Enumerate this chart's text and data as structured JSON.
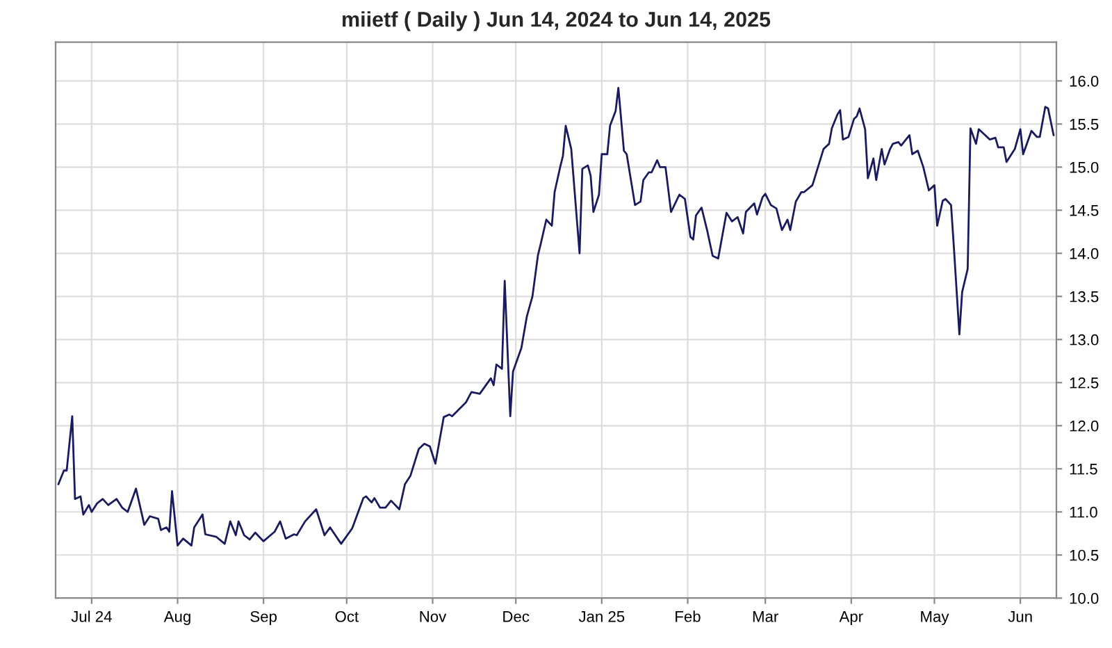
{
  "chart_data": {
    "type": "line",
    "title": "miietf ( Daily ) Jun 14, 2024 to Jun 14, 2025",
    "x": [
      "2024-06-19",
      "2024-06-21",
      "2024-06-22",
      "2024-06-24",
      "2024-06-25",
      "2024-06-27",
      "2024-06-28",
      "2024-06-30",
      "2024-07-01",
      "2024-07-03",
      "2024-07-05",
      "2024-07-07",
      "2024-07-10",
      "2024-07-12",
      "2024-07-14",
      "2024-07-17",
      "2024-07-20",
      "2024-07-22",
      "2024-07-25",
      "2024-07-26",
      "2024-07-28",
      "2024-07-29",
      "2024-07-30",
      "2024-08-01",
      "2024-08-03",
      "2024-08-06",
      "2024-08-07",
      "2024-08-10",
      "2024-08-11",
      "2024-08-15",
      "2024-08-18",
      "2024-08-20",
      "2024-08-22",
      "2024-08-23",
      "2024-08-25",
      "2024-08-27",
      "2024-08-29",
      "2024-09-01",
      "2024-09-05",
      "2024-09-07",
      "2024-09-09",
      "2024-09-12",
      "2024-09-13",
      "2024-09-16",
      "2024-09-20",
      "2024-09-23",
      "2024-09-25",
      "2024-09-29",
      "2024-10-03",
      "2024-10-07",
      "2024-10-08",
      "2024-10-10",
      "2024-10-11",
      "2024-10-13",
      "2024-10-15",
      "2024-10-17",
      "2024-10-20",
      "2024-10-22",
      "2024-10-24",
      "2024-10-27",
      "2024-10-29",
      "2024-10-31",
      "2024-11-02",
      "2024-11-05",
      "2024-11-07",
      "2024-11-08",
      "2024-11-13",
      "2024-11-15",
      "2024-11-18",
      "2024-11-22",
      "2024-11-23",
      "2024-11-24",
      "2024-11-26",
      "2024-11-27",
      "2024-11-29",
      "2024-11-30",
      "2024-12-03",
      "2024-12-05",
      "2024-12-07",
      "2024-12-09",
      "2024-12-10",
      "2024-12-12",
      "2024-12-14",
      "2024-12-15",
      "2024-12-17",
      "2024-12-18",
      "2024-12-19",
      "2024-12-21",
      "2024-12-24",
      "2024-12-25",
      "2024-12-27",
      "2024-12-28",
      "2024-12-29",
      "2024-12-31",
      "2025-01-01",
      "2025-01-03",
      "2025-01-04",
      "2025-01-06",
      "2025-01-07",
      "2025-01-09",
      "2025-01-10",
      "2025-01-13",
      "2025-01-15",
      "2025-01-16",
      "2025-01-18",
      "2025-01-19",
      "2025-01-21",
      "2025-01-22",
      "2025-01-24",
      "2025-01-26",
      "2025-01-29",
      "2025-01-31",
      "2025-02-02",
      "2025-02-03",
      "2025-02-04",
      "2025-02-06",
      "2025-02-08",
      "2025-02-10",
      "2025-02-12",
      "2025-02-15",
      "2025-02-17",
      "2025-02-19",
      "2025-02-21",
      "2025-02-22",
      "2025-02-25",
      "2025-02-26",
      "2025-02-28",
      "2025-03-01",
      "2025-03-03",
      "2025-03-05",
      "2025-03-07",
      "2025-03-09",
      "2025-03-10",
      "2025-03-12",
      "2025-03-14",
      "2025-03-15",
      "2025-03-18",
      "2025-03-20",
      "2025-03-22",
      "2025-03-24",
      "2025-03-25",
      "2025-03-27",
      "2025-03-28",
      "2025-03-29",
      "2025-03-31",
      "2025-04-02",
      "2025-04-03",
      "2025-04-04",
      "2025-04-06",
      "2025-04-07",
      "2025-04-09",
      "2025-04-10",
      "2025-04-12",
      "2025-04-13",
      "2025-04-15",
      "2025-04-16",
      "2025-04-18",
      "2025-04-19",
      "2025-04-22",
      "2025-04-23",
      "2025-04-25",
      "2025-04-27",
      "2025-04-29",
      "2025-05-01",
      "2025-05-02",
      "2025-05-04",
      "2025-05-05",
      "2025-05-07",
      "2025-05-08",
      "2025-05-10",
      "2025-05-11",
      "2025-05-13",
      "2025-05-14",
      "2025-05-16",
      "2025-05-17",
      "2025-05-21",
      "2025-05-23",
      "2025-05-24",
      "2025-05-26",
      "2025-05-27",
      "2025-05-30",
      "2025-06-01",
      "2025-06-02",
      "2025-06-05",
      "2025-06-07",
      "2025-06-08",
      "2025-06-10",
      "2025-06-11",
      "2025-06-13"
    ],
    "series": [
      {
        "color": "#1a1a5e",
        "values": [
          11.32,
          11.48,
          11.48,
          12.11,
          11.15,
          11.18,
          10.97,
          11.08,
          11.0,
          11.1,
          11.15,
          11.08,
          11.15,
          11.05,
          11.0,
          11.27,
          10.85,
          10.95,
          10.92,
          10.79,
          10.82,
          10.77,
          11.24,
          10.61,
          10.69,
          10.61,
          10.82,
          10.97,
          10.74,
          10.71,
          10.63,
          10.89,
          10.73,
          10.89,
          10.73,
          10.68,
          10.76,
          10.66,
          10.77,
          10.89,
          10.69,
          10.74,
          10.73,
          10.89,
          11.03,
          10.73,
          10.82,
          10.63,
          10.81,
          11.16,
          11.18,
          11.11,
          11.16,
          11.05,
          11.05,
          11.13,
          11.03,
          11.32,
          11.42,
          11.73,
          11.79,
          11.76,
          11.56,
          12.1,
          12.13,
          12.11,
          12.27,
          12.39,
          12.37,
          12.55,
          12.47,
          12.71,
          12.66,
          13.68,
          12.11,
          12.63,
          12.9,
          13.27,
          13.5,
          13.98,
          14.11,
          14.39,
          14.32,
          14.71,
          15.0,
          15.13,
          15.48,
          15.21,
          14.0,
          14.98,
          15.02,
          14.9,
          14.48,
          14.68,
          15.15,
          15.15,
          15.48,
          15.65,
          15.92,
          15.19,
          15.15,
          14.56,
          14.6,
          14.85,
          14.94,
          14.94,
          15.08,
          15.0,
          15.0,
          14.48,
          14.68,
          14.63,
          14.19,
          14.16,
          14.44,
          14.53,
          14.27,
          13.97,
          13.94,
          14.47,
          14.37,
          14.42,
          14.23,
          14.48,
          14.58,
          14.45,
          14.65,
          14.69,
          14.56,
          14.52,
          14.27,
          14.39,
          14.27,
          14.6,
          14.71,
          14.71,
          14.79,
          15.0,
          15.21,
          15.27,
          15.45,
          15.61,
          15.66,
          15.32,
          15.35,
          15.56,
          15.59,
          15.68,
          15.44,
          14.87,
          15.1,
          14.85,
          15.21,
          15.03,
          15.21,
          15.27,
          15.29,
          15.25,
          15.37,
          15.15,
          15.19,
          15.0,
          14.73,
          14.79,
          14.32,
          14.61,
          14.63,
          14.56,
          14.08,
          13.06,
          13.55,
          13.82,
          15.45,
          15.27,
          15.44,
          15.32,
          15.34,
          15.23,
          15.23,
          15.06,
          15.21,
          15.44,
          15.15,
          15.42,
          15.35,
          15.35,
          15.7,
          15.68,
          15.37
        ]
      }
    ],
    "xlim": [
      "2024-06-18",
      "2025-06-14"
    ],
    "xticks": [
      {
        "value": "2024-07-01",
        "label": "Jul 24"
      },
      {
        "value": "2024-08-01",
        "label": "Aug"
      },
      {
        "value": "2024-09-01",
        "label": "Sep"
      },
      {
        "value": "2024-10-01",
        "label": "Oct"
      },
      {
        "value": "2024-11-01",
        "label": "Nov"
      },
      {
        "value": "2024-12-01",
        "label": "Dec"
      },
      {
        "value": "2025-01-01",
        "label": "Jan 25"
      },
      {
        "value": "2025-02-01",
        "label": "Feb"
      },
      {
        "value": "2025-03-01",
        "label": "Mar"
      },
      {
        "value": "2025-04-01",
        "label": "Apr"
      },
      {
        "value": "2025-05-01",
        "label": "May"
      },
      {
        "value": "2025-06-01",
        "label": "Jun"
      }
    ],
    "ylim": [
      10,
      16.45
    ],
    "yticks": [
      {
        "value": 10,
        "label": "10.0"
      },
      {
        "value": 10.5,
        "label": "10.5"
      },
      {
        "value": 11,
        "label": "11.0"
      },
      {
        "value": 11.5,
        "label": "11.5"
      },
      {
        "value": 12,
        "label": "12.0"
      },
      {
        "value": 12.5,
        "label": "12.5"
      },
      {
        "value": 13,
        "label": "13.0"
      },
      {
        "value": 13.5,
        "label": "13.5"
      },
      {
        "value": 14,
        "label": "14.0"
      },
      {
        "value": 14.5,
        "label": "14.5"
      },
      {
        "value": 15,
        "label": "15.0"
      },
      {
        "value": 15.5,
        "label": "15.5"
      },
      {
        "value": 16,
        "label": "16.0"
      }
    ],
    "grid": true,
    "marker": "none",
    "line_style": "solid"
  }
}
